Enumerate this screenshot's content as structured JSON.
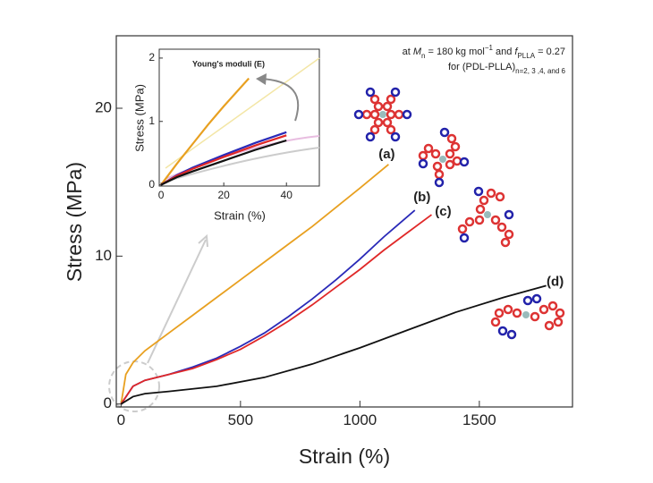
{
  "chart_data": [
    {
      "type": "line",
      "xlabel": "Strain (%)",
      "ylabel": "Stress (MPa)",
      "annotation": [
        [
          "at ",
          "M",
          "n",
          " = 180 kg mol",
          "−1",
          " and ",
          "f",
          "PLLA",
          " = 0.27"
        ],
        [
          "for (PDL-PLLA)",
          "n=2, 3 ,4, and 6"
        ]
      ],
      "xlim": [
        -20,
        1890
      ],
      "ylim": [
        -0.2,
        24.9
      ],
      "xticks": [
        0,
        500,
        1000,
        1500
      ],
      "yticks": [
        0,
        10,
        20
      ],
      "series": [
        {
          "name": "(a)",
          "color": "#e8a020",
          "x": [
            0,
            20,
            50,
            100,
            200,
            300,
            400,
            500,
            600,
            700,
            800,
            900,
            1000,
            1120
          ],
          "values": [
            0,
            2,
            2.8,
            3.6,
            4.8,
            6,
            7.2,
            8.4,
            9.6,
            10.8,
            12,
            13.3,
            14.6,
            16.2
          ]
        },
        {
          "name": "(b)",
          "color": "#2a2ab8",
          "x": [
            0,
            50,
            100,
            200,
            300,
            400,
            500,
            600,
            700,
            800,
            900,
            1000,
            1100,
            1230
          ],
          "values": [
            0,
            1.2,
            1.6,
            2,
            2.5,
            3.1,
            3.9,
            4.8,
            5.9,
            7.1,
            8.4,
            9.8,
            11.3,
            13.1
          ]
        },
        {
          "name": "(c)",
          "color": "#e02828",
          "x": [
            0,
            50,
            100,
            200,
            300,
            400,
            500,
            600,
            700,
            800,
            900,
            1000,
            1100,
            1200,
            1300
          ],
          "values": [
            0,
            1.2,
            1.6,
            2,
            2.4,
            3,
            3.7,
            4.6,
            5.6,
            6.7,
            7.9,
            9.1,
            10.4,
            11.6,
            12.8
          ]
        },
        {
          "name": "(d)",
          "color": "#111111",
          "x": [
            0,
            50,
            100,
            200,
            400,
            600,
            800,
            1000,
            1200,
            1400,
            1600,
            1780
          ],
          "values": [
            0,
            0.5,
            0.7,
            0.85,
            1.2,
            1.8,
            2.7,
            3.8,
            5,
            6.2,
            7.2,
            8
          ]
        }
      ]
    },
    {
      "type": "line",
      "title": "Young's moduli (E)",
      "xlabel": "Strain (%)",
      "ylabel": "Stress (MPa)",
      "xlim": [
        -0.6,
        50.5
      ],
      "ylim": [
        -0.02,
        2.14
      ],
      "xticks": [
        0,
        20,
        40
      ],
      "yticks": [
        0,
        1,
        2
      ],
      "series": [
        {
          "color": "#e8a020",
          "x": [
            0,
            5,
            10,
            15,
            20,
            28
          ],
          "values": [
            0,
            0.33,
            0.64,
            0.95,
            1.24,
            1.68
          ]
        },
        {
          "color": "#2a2ab8",
          "x": [
            0,
            5,
            10,
            20,
            30,
            40
          ],
          "values": [
            0,
            0.15,
            0.27,
            0.47,
            0.66,
            0.83
          ]
        },
        {
          "color": "#e02828",
          "x": [
            0,
            5,
            10,
            20,
            30,
            40
          ],
          "values": [
            0,
            0.14,
            0.25,
            0.44,
            0.62,
            0.78
          ]
        },
        {
          "color": "#111111",
          "x": [
            0,
            5,
            10,
            20,
            30,
            40
          ],
          "values": [
            0,
            0.12,
            0.21,
            0.38,
            0.55,
            0.7
          ]
        }
      ]
    }
  ]
}
